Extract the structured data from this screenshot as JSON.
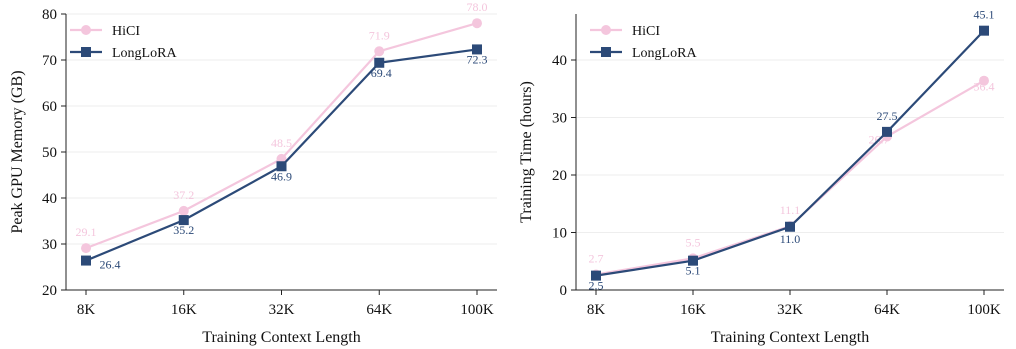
{
  "chart_data": [
    {
      "type": "line",
      "categories": [
        "8K",
        "16K",
        "32K",
        "64K",
        "100K"
      ],
      "xlabel": "Training Context Length",
      "ylabel": "Peak GPU Memory (GB)",
      "ylim": [
        20,
        80
      ],
      "yticks": [
        20,
        30,
        40,
        50,
        60,
        70,
        80
      ],
      "grid": true,
      "legend_position": "top-left",
      "series": [
        {
          "name": "HiCI",
          "values": [
            29.1,
            37.2,
            48.5,
            71.9,
            78.0
          ],
          "labels": [
            "29.1",
            "37.2",
            "48.5",
            "71.9",
            "78.0"
          ],
          "color": "#f4c6dd",
          "marker": "circle"
        },
        {
          "name": "LongLoRA",
          "values": [
            26.4,
            35.2,
            46.9,
            69.4,
            72.3
          ],
          "labels": [
            "26.4",
            "35.2",
            "46.9",
            "69.4",
            "72.3"
          ],
          "color": "#2c4a78",
          "marker": "square"
        }
      ]
    },
    {
      "type": "line",
      "categories": [
        "8K",
        "16K",
        "32K",
        "64K",
        "100K"
      ],
      "xlabel": "Training Context Length",
      "ylabel": "Training Time (hours)",
      "ylim": [
        0,
        48
      ],
      "yticks": [
        0,
        10,
        20,
        30,
        40
      ],
      "grid": true,
      "legend_position": "top-left",
      "series": [
        {
          "name": "HiCI",
          "values": [
            2.7,
            5.5,
            11.1,
            26.7,
            36.4
          ],
          "labels": [
            "2.7",
            "5.5",
            "11.1",
            "26.7",
            "36.4"
          ],
          "color": "#f4c6dd",
          "marker": "circle"
        },
        {
          "name": "LongLoRA",
          "values": [
            2.5,
            5.1,
            11.0,
            27.5,
            45.1
          ],
          "labels": [
            "2.5",
            "5.1",
            "11.0",
            "27.5",
            "45.1"
          ],
          "color": "#2c4a78",
          "marker": "square"
        }
      ]
    }
  ]
}
